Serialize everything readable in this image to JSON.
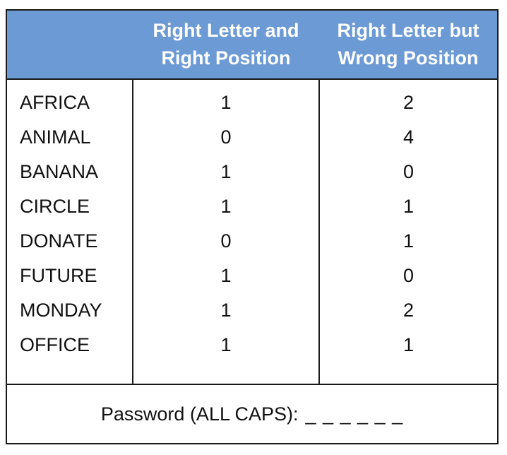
{
  "table": {
    "headers": {
      "right_position": [
        "Right Letter and",
        "Right Position"
      ],
      "wrong_position": [
        "Right Letter but",
        "Wrong Position"
      ]
    },
    "rows": [
      {
        "word": "AFRICA",
        "right": "1",
        "wrong": "2"
      },
      {
        "word": "ANIMAL",
        "right": "0",
        "wrong": "4"
      },
      {
        "word": "BANANA",
        "right": "1",
        "wrong": "0"
      },
      {
        "word": "CIRCLE",
        "right": "1",
        "wrong": "1"
      },
      {
        "word": "DONATE",
        "right": "0",
        "wrong": "1"
      },
      {
        "word": "FUTURE",
        "right": "1",
        "wrong": "0"
      },
      {
        "word": "MONDAY",
        "right": "1",
        "wrong": "2"
      },
      {
        "word": "OFFICE",
        "right": "1",
        "wrong": "1"
      }
    ],
    "footer": {
      "label": "Password (ALL CAPS):",
      "blanks": "_ _ _ _ _ _"
    }
  },
  "colors": {
    "header_background": "#6c9ad4",
    "header_text": "#ffffff",
    "border": "#1a1a1a"
  }
}
